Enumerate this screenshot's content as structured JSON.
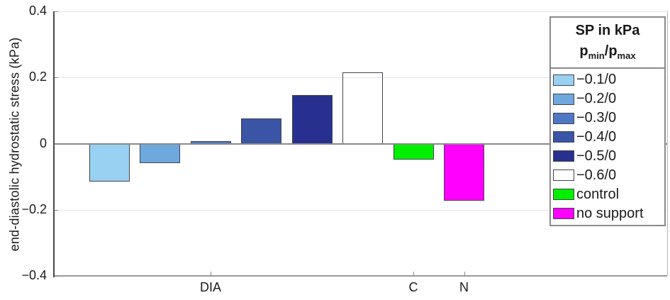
{
  "figure": {
    "ylabel": "end-diastolic hydrostatic stress (kPa)"
  },
  "chart_data": {
    "type": "bar",
    "title": "",
    "xlabel": "",
    "ylabel": "end-diastolic hydrostatic stress (kPa)",
    "ylim": [
      -0.4,
      0.4
    ],
    "grid": "horizontal",
    "yticks": [
      0.4,
      0.2,
      0,
      -0.2,
      -0.4
    ],
    "ytick_labels": [
      "0.4",
      "0.2",
      "0",
      "−0.2",
      "−0.4"
    ],
    "x_group_labels": [
      {
        "label": "DIA",
        "slot": 2
      },
      {
        "label": "C",
        "slot": 6
      },
      {
        "label": "N",
        "slot": 7
      }
    ],
    "series": [
      {
        "name": "−0.1/0",
        "value": -0.112,
        "color": "#99d1f2"
      },
      {
        "name": "−0.2/0",
        "value": -0.057,
        "color": "#6fa8dc"
      },
      {
        "name": "−0.3/0",
        "value": 0.007,
        "color": "#4f78c4"
      },
      {
        "name": "−0.4/0",
        "value": 0.075,
        "color": "#3a55a5"
      },
      {
        "name": "−0.5/0",
        "value": 0.146,
        "color": "#28308f"
      },
      {
        "name": "−0.6/0",
        "value": 0.216,
        "color": "#01066"
      },
      {
        "name": "control",
        "value": -0.046,
        "color": "#00f000"
      },
      {
        "name": "no support",
        "value": -0.17,
        "color": "#ff00ff"
      }
    ],
    "legend": {
      "position": "top-right",
      "title_line1": "SP in kPa",
      "p_base_min": "p",
      "p_sub_min": "min",
      "separator": "/",
      "p_base_max": "p",
      "p_sub_max": "max"
    }
  }
}
